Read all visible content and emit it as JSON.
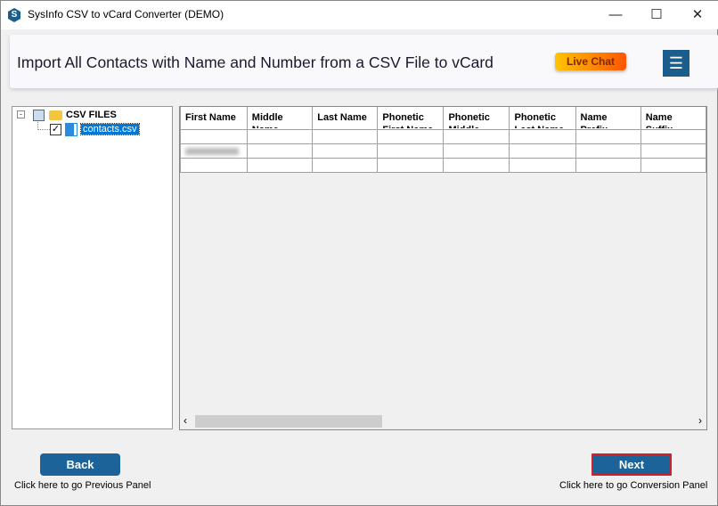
{
  "window": {
    "title": "SysInfo CSV to vCard Converter (DEMO)",
    "logo_letter": "S"
  },
  "header": {
    "title": "Import All Contacts with Name and Number from a CSV File to vCard",
    "live_chat": "Live Chat",
    "menu_icon": "☰"
  },
  "tree": {
    "root": "CSV FILES",
    "file": "contacts.csv",
    "file_checked": true
  },
  "grid": {
    "columns": [
      "First Name",
      "Middle Name",
      "Last Name",
      "Phonetic First Name",
      "Phonetic Middle Name",
      "Phonetic Last Name",
      "Name Prefix",
      "Name Suffix"
    ]
  },
  "footer": {
    "back": "Back",
    "back_caption": "Click here to go Previous Panel",
    "next": "Next",
    "next_caption": "Click here to go Conversion Panel"
  },
  "colors": {
    "accent": "#1b6398",
    "next_border": "#d0202a"
  }
}
